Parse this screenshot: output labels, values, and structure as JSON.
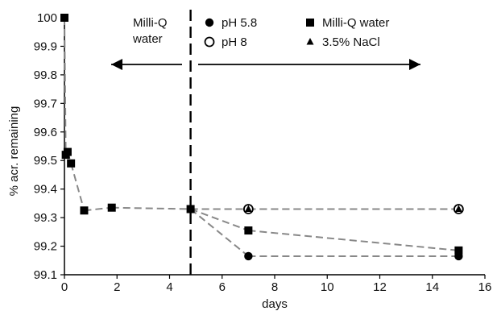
{
  "chart_data": {
    "type": "scatter",
    "xlabel": "days",
    "ylabel": "% acr. remaining",
    "xlim": [
      0,
      16
    ],
    "ylim": [
      99.1,
      100
    ],
    "x_ticks": [
      0,
      2,
      4,
      6,
      8,
      10,
      12,
      14,
      16
    ],
    "y_ticks": [
      99.1,
      99.2,
      99.3,
      99.4,
      99.5,
      99.6,
      99.7,
      99.8,
      99.9,
      100
    ],
    "divider_x": 4.8,
    "series": [
      {
        "name": "Milli-Q water",
        "marker": "square",
        "line": "dashed",
        "points": [
          [
            0,
            100
          ],
          [
            0.05,
            99.52
          ],
          [
            0.12,
            99.53
          ],
          [
            0.25,
            99.49
          ],
          [
            0.75,
            99.325
          ],
          [
            1.8,
            99.335
          ],
          [
            4.8,
            99.33
          ],
          [
            7,
            99.255
          ],
          [
            15,
            99.185
          ]
        ]
      },
      {
        "name": "pH 5.8",
        "marker": "filled-circle",
        "line": "dashed",
        "points": [
          [
            4.8,
            99.33
          ],
          [
            7,
            99.165
          ],
          [
            15,
            99.165
          ]
        ]
      },
      {
        "name": "pH 8",
        "marker": "open-circle",
        "line": "dashed",
        "points": [
          [
            4.8,
            99.33
          ],
          [
            7,
            99.33
          ],
          [
            15,
            99.33
          ]
        ]
      },
      {
        "name": "3.5% NaCl",
        "marker": "triangle",
        "line": "dashed",
        "points": [
          [
            4.8,
            99.33
          ],
          [
            7,
            99.33
          ],
          [
            15,
            99.33
          ]
        ]
      }
    ],
    "annotations": {
      "left_label_line1": "Milli-Q",
      "left_label_line2": "water",
      "arrows": "left and right of divider"
    },
    "legend_placement": "top"
  }
}
